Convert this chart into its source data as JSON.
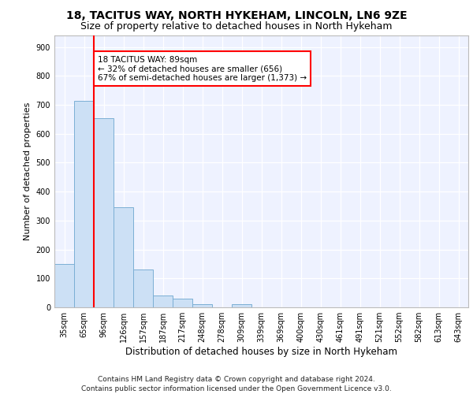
{
  "title1": "18, TACITUS WAY, NORTH HYKEHAM, LINCOLN, LN6 9ZE",
  "title2": "Size of property relative to detached houses in North Hykeham",
  "xlabel": "Distribution of detached houses by size in North Hykeham",
  "ylabel": "Number of detached properties",
  "footer1": "Contains HM Land Registry data © Crown copyright and database right 2024.",
  "footer2": "Contains public sector information licensed under the Open Government Licence v3.0.",
  "categories": [
    "35sqm",
    "65sqm",
    "96sqm",
    "126sqm",
    "157sqm",
    "187sqm",
    "217sqm",
    "248sqm",
    "278sqm",
    "309sqm",
    "339sqm",
    "369sqm",
    "400sqm",
    "430sqm",
    "461sqm",
    "491sqm",
    "521sqm",
    "552sqm",
    "582sqm",
    "613sqm",
    "643sqm"
  ],
  "values": [
    150,
    715,
    655,
    345,
    130,
    40,
    30,
    12,
    0,
    10,
    0,
    0,
    0,
    0,
    0,
    0,
    0,
    0,
    0,
    0,
    0
  ],
  "bar_color": "#cce0f5",
  "bar_edge_color": "#7bafd4",
  "marker_color": "red",
  "annotation_text": "18 TACITUS WAY: 89sqm\n← 32% of detached houses are smaller (656)\n67% of semi-detached houses are larger (1,373) →",
  "ylim": [
    0,
    940
  ],
  "yticks": [
    0,
    100,
    200,
    300,
    400,
    500,
    600,
    700,
    800,
    900
  ],
  "background_color": "#eef2ff",
  "grid_color": "#ffffff",
  "title1_fontsize": 10,
  "title2_fontsize": 9,
  "ylabel_fontsize": 8,
  "xlabel_fontsize": 8.5,
  "tick_fontsize": 7,
  "footer_fontsize": 6.5,
  "annotation_fontsize": 7.5
}
